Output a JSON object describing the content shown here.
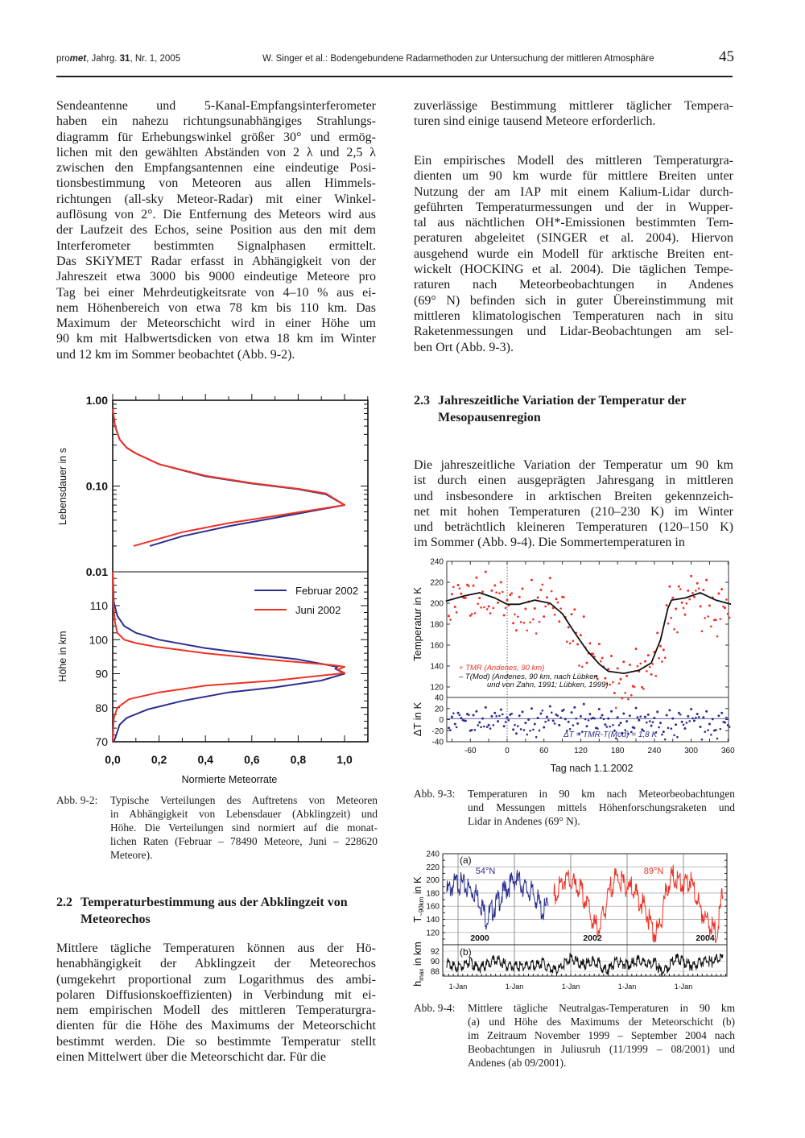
{
  "header": {
    "journal_prefix": "pro",
    "journal_brand": "met",
    "journal_rest_a": ", Jahrg. ",
    "volume": "31",
    "journal_rest_b": ", Nr. 1, 2005",
    "running_title": "W. Singer et al.: Bodengebundene Radarmethoden zur Untersuchung der mittleren Atmosphäre",
    "page_number": "45"
  },
  "left_column": {
    "para1": [
      "Sendeantenne und 5-Kanal-Empfangsinterferometer",
      "haben ein nahezu richtungsunabhängiges Strahlungs-",
      "diagramm für Erhebungswinkel größer 30° und ermög-",
      "lichen mit den gewählten Abständen von 2 λ und 2,5 λ",
      "zwischen den Empfangsantennen eine eindeutige Posi-",
      "tionsbestimmung von Meteoren aus allen Himmels-",
      "richtungen (all-sky Meteor-Radar) mit einer Winkel-",
      "auflösung von 2°. Die Entfernung des Meteors wird aus",
      "der Laufzeit des Echos, seine Position aus den mit dem",
      "Interferometer bestimmten Signalphasen ermittelt.",
      "Das SKiYMET Radar erfasst in Abhängigkeit von der",
      "Jahreszeit etwa 3000 bis 9000 eindeutige Meteore pro",
      "Tag bei einer Mehrdeutigkeitsrate von 4–10 % aus ei-",
      "nem Höhenbereich von etwa 78 km bis 110 km. Das",
      "Maximum der Meteorschicht wird in einer Höhe um",
      "90 km mit Halbwertsdicken von etwa 18 km im Winter",
      "und 12 km im Sommer beobachtet (Abb. 9-2)."
    ],
    "section_2_2": {
      "number": "2.2",
      "title_line1": "Temperaturbestimmung aus der Abklingzeit von",
      "title_line2": "Meteorechos"
    },
    "para2": [
      "Mittlere tägliche Temperaturen können aus der Hö-",
      "henabhängigkeit der Abklingzeit der Meteorechos",
      "(umgekehrt proportional zum Logarithmus des ambi-",
      "polaren Diffusionskoeffizienten) in Verbindung mit ei-",
      "nem empirischen Modell des mittleren Temperaturgra-",
      "dienten für die Höhe des Maximums der Meteorschicht",
      "bestimmt werden. Die so bestimmte Temperatur stellt",
      "einen Mittelwert über die Meteorschicht dar. Für die"
    ]
  },
  "right_column": {
    "para1": [
      "zuverlässige Bestimmung mittlerer täglicher Tempera-",
      "turen sind einige tausend Meteore erforderlich."
    ],
    "para2": [
      "Ein empirisches Modell des mittleren Temperaturgra-",
      "dienten um 90 km wurde für mittlere Breiten unter",
      "Nutzung der am IAP mit einem Kalium-Lidar durch-",
      "geführten Temperaturmessungen und der in Wupper-",
      "tal aus nächtlichen OH*-Emissionen bestimmten Tem-",
      "peraturen abgeleitet (SINGER et al. 2004). Hiervon",
      "ausgehend wurde ein Modell für arktische Breiten ent-",
      "wickelt (HOCKING et al. 2004). Die täglichen Tempe-",
      "raturen nach Meteorbeobachtungen in Andenes",
      "(69° N) befinden sich in guter Übereinstimmung mit",
      "mittleren klimatologischen Temperaturen nach in situ",
      "Raketenmessungen und Lidar-Beobachtungen am sel-",
      "ben Ort (Abb. 9-3)."
    ],
    "section_2_3": {
      "number": "2.3",
      "title_line1": "Jahreszeitliche Variation der Temperatur der",
      "title_line2": "Mesopausenregion"
    },
    "para3": [
      "Die jahreszeitliche Variation der Temperatur um 90 km",
      "ist durch einen ausgeprägten Jahresgang in mittleren",
      "und insbesondere in arktischen Breiten gekennzeich-",
      "net mit hohen Temperaturen (210–230 K) im Winter",
      "und beträchtlich kleineren Temperaturen (120–150 K)",
      "im Sommer (Abb. 9-4). Die Sommertemperaturen in"
    ]
  },
  "captions": {
    "fig_9_2": {
      "label": "Abb. 9-2:",
      "lines": [
        "Typische Verteilungen des Auftretens von Meteoren",
        "in Abhängigkeit von Lebensdauer (Abklingzeit) und",
        "Höhe. Die Verteilungen sind normiert auf die monat-",
        "lichen Raten (Februar – 78490 Meteore, Juni – 228620",
        "Meteore)."
      ]
    },
    "fig_9_3": {
      "label": "Abb. 9-3:",
      "lines": [
        "Temperaturen in 90 km nach Meteorbeobachtungen",
        "und Messungen mittels Höhenforschungsraketen und",
        "Lidar in Andenes (69° N)."
      ]
    },
    "fig_9_4": {
      "label": "Abb. 9-4:",
      "lines": [
        "Mittlere tägliche Neutralgas-Temperaturen in 90 km",
        "(a) und Höhe des Maximums der Meteorschicht (b)",
        "im Zeitraum November 1999 – September 2004 nach",
        "Beobachtungen in Juliusruh (11/1999 – 08/2001) und",
        "Andenes (ab 09/2001)."
      ]
    }
  },
  "colors": {
    "blue": "#2b2f8f",
    "red": "#ee3124",
    "black": "#111111"
  },
  "chart_data": [
    {
      "id": "fig_9_2",
      "type": "line",
      "xlabel": "Normierte Meteorrate",
      "xlim": [
        0,
        1.1
      ],
      "x_ticks": [
        "0,0",
        "0,2",
        "0,4",
        "0,6",
        "0,8",
        "1,0"
      ],
      "x_tick_values": [
        0,
        0.2,
        0.4,
        0.6,
        0.8,
        1.0
      ],
      "legend": {
        "placement": "right-middle",
        "entries": [
          "Februar 2002",
          "Juni 2002"
        ]
      },
      "panels": [
        {
          "name": "lifetime",
          "ylabel": "Lebensdauer in s",
          "yscale": "log",
          "ylim": [
            0.01,
            1.0
          ],
          "y_ticks": [
            "1.00",
            "0.10",
            "0.01"
          ],
          "y_tick_values": [
            1.0,
            0.1,
            0.01
          ],
          "series": [
            {
              "name": "Februar 2002",
              "color": "#2b2f8f",
              "points": [
                [
                  0,
                  0.8
                ],
                [
                  0.01,
                  0.5
                ],
                [
                  0.03,
                  0.35
                ],
                [
                  0.06,
                  0.28
                ],
                [
                  0.1,
                  0.24
                ],
                [
                  0.2,
                  0.18
                ],
                [
                  0.4,
                  0.13
                ],
                [
                  0.6,
                  0.107
                ],
                [
                  0.8,
                  0.092
                ],
                [
                  0.92,
                  0.08
                ],
                [
                  1.0,
                  0.06
                ],
                [
                  0.75,
                  0.045
                ],
                [
                  0.5,
                  0.034
                ],
                [
                  0.3,
                  0.026
                ],
                [
                  0.16,
                  0.02
                ]
              ]
            },
            {
              "name": "Juni 2002",
              "color": "#ee3124",
              "points": [
                [
                  0,
                  0.8
                ],
                [
                  0.01,
                  0.5
                ],
                [
                  0.03,
                  0.35
                ],
                [
                  0.06,
                  0.28
                ],
                [
                  0.1,
                  0.24
                ],
                [
                  0.2,
                  0.18
                ],
                [
                  0.4,
                  0.132
                ],
                [
                  0.6,
                  0.108
                ],
                [
                  0.8,
                  0.093
                ],
                [
                  0.92,
                  0.082
                ],
                [
                  1.0,
                  0.06
                ],
                [
                  0.75,
                  0.047
                ],
                [
                  0.5,
                  0.037
                ],
                [
                  0.3,
                  0.029
                ],
                [
                  0.09,
                  0.02
                ]
              ]
            }
          ]
        },
        {
          "name": "height",
          "ylabel": "Höhe in km",
          "ylim": [
            70,
            120
          ],
          "y_ticks": [
            "110",
            "100",
            "90",
            "80",
            "70"
          ],
          "y_tick_values": [
            110,
            100,
            90,
            80,
            70
          ],
          "series": [
            {
              "name": "Februar 2002",
              "color": "#2b2f8f",
              "points": [
                [
                  0,
                  120
                ],
                [
                  0.005,
                  111
                ],
                [
                  0.02,
                  107
                ],
                [
                  0.05,
                  104
                ],
                [
                  0.1,
                  102
                ],
                [
                  0.2,
                  100
                ],
                [
                  0.4,
                  97.5
                ],
                [
                  0.6,
                  95.8
                ],
                [
                  0.8,
                  94.2
                ],
                [
                  0.97,
                  92
                ],
                [
                  0.96,
                  91.5
                ],
                [
                  1.0,
                  90
                ],
                [
                  0.9,
                  88
                ],
                [
                  0.7,
                  86
                ],
                [
                  0.5,
                  84.5
                ],
                [
                  0.3,
                  82
                ],
                [
                  0.15,
                  79.5
                ],
                [
                  0.06,
                  77
                ],
                [
                  0.03,
                  75
                ],
                [
                  0.01,
                  71
                ],
                [
                  0.005,
                  70
                ]
              ]
            },
            {
              "name": "Juni 2002",
              "color": "#ee3124",
              "points": [
                [
                  0,
                  120
                ],
                [
                  0.003,
                  110
                ],
                [
                  0.01,
                  105
                ],
                [
                  0.02,
                  102
                ],
                [
                  0.05,
                  100
                ],
                [
                  0.1,
                  99
                ],
                [
                  0.18,
                  98
                ],
                [
                  0.4,
                  96
                ],
                [
                  0.7,
                  94
                ],
                [
                  0.95,
                  92.5
                ],
                [
                  1.0,
                  92
                ],
                [
                  0.97,
                  91.2
                ],
                [
                  1.0,
                  90.2
                ],
                [
                  0.7,
                  88
                ],
                [
                  0.4,
                  86.5
                ],
                [
                  0.2,
                  84.5
                ],
                [
                  0.07,
                  82.5
                ],
                [
                  0.02,
                  80
                ],
                [
                  0.005,
                  77
                ],
                [
                  0,
                  70
                ]
              ]
            }
          ]
        }
      ]
    },
    {
      "id": "fig_9_3",
      "type": "scatter",
      "xlabel": "Tag nach 1.1.2002",
      "xlim": [
        -100,
        365
      ],
      "x_ticks": [
        "-60",
        "0",
        "60",
        "120",
        "180",
        "240",
        "300",
        "360"
      ],
      "x_tick_values": [
        -60,
        0,
        60,
        120,
        180,
        240,
        300,
        360
      ],
      "panels": [
        {
          "name": "temperature",
          "ylabel": "Temperatur in K",
          "ylim": [
            110,
            240
          ],
          "y_ticks": [
            "240",
            "220",
            "200",
            "180",
            "160",
            "140",
            "120"
          ],
          "y_tick_values": [
            240,
            220,
            200,
            180,
            160,
            140,
            120
          ]
        },
        {
          "name": "difference",
          "ylabel": "ΔT in K",
          "ylim": [
            -40,
            40
          ],
          "y_ticks": [
            "40",
            "20",
            "0",
            "-20",
            "-40"
          ],
          "y_tick_values": [
            40,
            20,
            0,
            -20,
            -40
          ]
        }
      ],
      "legend": {
        "tmr_symbol": "+",
        "tmr_label": "TMR   (Andenes, 90 km)",
        "mod_symbol": "–",
        "mod_label": "T(Mod) (Andenes, 90 km, nach Lübken",
        "mod_label_2": "und von Zahn, 1991; Lübken, 1999)"
      },
      "annotation": "ΔT = TMR-T(Mod) = 1,8 K",
      "model_curve": [
        [
          -100,
          202
        ],
        [
          -70,
          207
        ],
        [
          -45,
          210
        ],
        [
          -20,
          205
        ],
        [
          0,
          199
        ],
        [
          20,
          199
        ],
        [
          45,
          203
        ],
        [
          70,
          200
        ],
        [
          90,
          190
        ],
        [
          110,
          172
        ],
        [
          130,
          155
        ],
        [
          150,
          142
        ],
        [
          165,
          135
        ],
        [
          190,
          133
        ],
        [
          215,
          136
        ],
        [
          235,
          143
        ],
        [
          250,
          165
        ],
        [
          262,
          195
        ],
        [
          268,
          203
        ],
        [
          290,
          205
        ],
        [
          315,
          210
        ],
        [
          340,
          203
        ],
        [
          365,
          199
        ]
      ],
      "obs_day_start": -95,
      "obs_day_step": 5,
      "delta_T": [
        -15,
        5,
        -8,
        12,
        3,
        -2,
        10,
        -20,
        8,
        15,
        -5,
        2,
        22,
        -10,
        6,
        12,
        -3,
        18,
        -12,
        4,
        9,
        -18,
        -25,
        7,
        14,
        -6,
        0,
        20,
        -8,
        3,
        11,
        -14,
        5,
        24,
        -2,
        9,
        -10,
        16,
        1,
        -4,
        13,
        22,
        -7,
        6,
        28,
        -12,
        10,
        3,
        -15,
        19,
        8,
        -9,
        2,
        15,
        -20,
        4,
        -6,
        11,
        -3,
        7,
        -14,
        21,
        -1,
        -18,
        5,
        9,
        -11,
        3,
        14,
        -6,
        -22,
        8,
        17,
        2,
        -9,
        12,
        -4,
        -16,
        6,
        19,
        -2,
        10,
        -13,
        4,
        15,
        -8,
        1,
        -19,
        7,
        12,
        -5,
        -10
      ],
      "mean_delta_T": 1.8
    },
    {
      "id": "fig_9_4",
      "type": "line",
      "xlim": [
        1999.73,
        2004.77
      ],
      "x_ticks": [
        "1-Jan",
        "1-Jan",
        "1-Jan",
        "1-Jan",
        "1-Jan"
      ],
      "x_tick_values": [
        2000,
        2001,
        2002,
        2003,
        2004
      ],
      "year_labels": [
        "2000",
        "2002",
        "2004"
      ],
      "year_label_values": [
        2000.5,
        2002.5,
        2004.5
      ],
      "panels": [
        {
          "name": "a",
          "label": "(a)",
          "ylabel_main": "T",
          "ylabel_sub": "~90km",
          "ylabel_rest": " in K",
          "ylim": [
            101,
            240
          ],
          "y_ticks": [
            "240",
            "220",
            "200",
            "180",
            "160",
            "140",
            "120"
          ],
          "y_tick_values": [
            240,
            220,
            200,
            180,
            160,
            140,
            120
          ]
        },
        {
          "name": "b",
          "label": "(b)",
          "ylabel_main": "h",
          "ylabel_sub": "max",
          "ylabel_rest": " in  km",
          "ylim": [
            87,
            93.3
          ],
          "y_ticks": [
            "92",
            "90",
            "88"
          ],
          "y_tick_values": [
            92,
            90,
            88
          ]
        }
      ],
      "series": [
        {
          "name": "54°N",
          "color": "#2b2f8f",
          "start": 1999.8,
          "step": 0.1,
          "values": [
            190,
            200,
            205,
            200,
            195,
            190,
            175,
            150,
            162,
            175,
            188,
            200,
            210,
            205,
            195,
            190,
            180,
            160,
            170
          ]
        },
        {
          "name": "89°N",
          "color": "#ee3124",
          "start": 2001.7,
          "step": 0.1,
          "values": [
            185,
            200,
            212,
            205,
            200,
            190,
            170,
            142,
            135,
            160,
            195,
            215,
            205,
            200,
            195,
            180,
            170,
            145,
            125,
            145,
            195,
            215,
            210,
            200,
            210,
            190,
            165,
            150,
            135,
            128,
            195
          ]
        }
      ],
      "hmax": {
        "start": 1999.8,
        "step": 0.1,
        "values": [
          90.2,
          89.6,
          89.4,
          89.8,
          90.5,
          89.5,
          89.3,
          89.8,
          90.6,
          90.8,
          90.2,
          89.4,
          89.6,
          89.5,
          89.7,
          89.6,
          89.8,
          90.2,
          89.4,
          88.7,
          89.2,
          90.2,
          91.2,
          90.4,
          89.8,
          90.1,
          90.5,
          90.2,
          88.8,
          89.1,
          90.6,
          90.1,
          89.9,
          90.1,
          90.8,
          90.3,
          89.9,
          90.2,
          88.5,
          89.0,
          90.3,
          91.2,
          90.4,
          89.9,
          89.6,
          90.3,
          90.8,
          90.4,
          90.9,
          91.1
        ]
      }
    }
  ]
}
